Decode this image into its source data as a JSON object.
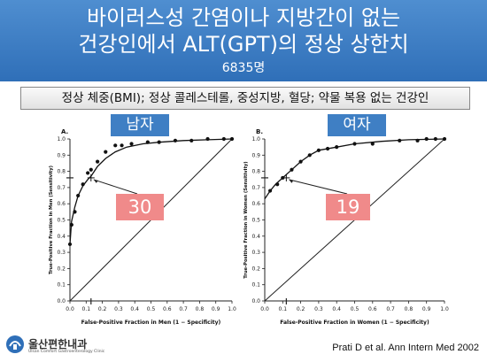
{
  "title_line1": "바이러스성 간염이나 지방간이 없는",
  "title_line2": "건강인에서 ALT(GPT)의 정상 상한치",
  "subtitle_count": "6835명",
  "criteria": "정상 체중(BMI); 정상 콜레스테롤, 중성지방, 혈당; 약물 복용 없는 건강인",
  "citation": "Prati D et al. Ann Intern Med 2002",
  "logo": {
    "main": "울산편한내과",
    "sub": "Ulsan Comfort Gastroenterology Clinic"
  },
  "colors": {
    "header": "#3a7cc4",
    "tag": "#3f7fc4",
    "callout": "#f08a8a"
  },
  "chart_data": [
    {
      "type": "scatter",
      "panel_label": "A.",
      "sex_tag": "남자",
      "callout": "30",
      "xlabel": "False-Positive Fraction in Men (1 − Specificity)",
      "ylabel": "True-Positive Fraction in Men (Sensitivity)",
      "xlim": [
        0,
        1
      ],
      "ylim": [
        0,
        1
      ],
      "ticks": [
        "0.0",
        "0.1",
        "0.2",
        "0.3",
        "0.4",
        "0.5",
        "0.6",
        "0.7",
        "0.8",
        "0.9",
        "1.0"
      ],
      "cutoff": {
        "x": 0.13,
        "y": 0.76
      },
      "x": [
        0.0,
        0.01,
        0.03,
        0.05,
        0.08,
        0.11,
        0.13,
        0.17,
        0.22,
        0.28,
        0.32,
        0.38,
        0.48,
        0.55,
        0.65,
        0.75,
        0.85,
        0.95,
        1.0
      ],
      "y": [
        0.35,
        0.47,
        0.55,
        0.65,
        0.72,
        0.79,
        0.81,
        0.86,
        0.92,
        0.96,
        0.96,
        0.97,
        0.98,
        0.98,
        0.99,
        0.99,
        1.0,
        1.0,
        1.0
      ],
      "curve_x": [
        0.0,
        0.01,
        0.03,
        0.05,
        0.08,
        0.11,
        0.13,
        0.17,
        0.22,
        0.28,
        0.35,
        0.45,
        0.55,
        0.7,
        0.85,
        1.0
      ],
      "curve_y": [
        0.35,
        0.49,
        0.58,
        0.65,
        0.71,
        0.75,
        0.77,
        0.83,
        0.88,
        0.92,
        0.95,
        0.97,
        0.98,
        0.99,
        0.995,
        1.0
      ]
    },
    {
      "type": "scatter",
      "panel_label": "B.",
      "sex_tag": "여자",
      "callout": "19",
      "xlabel": "False-Positive Fraction in Women (1 − Specificity)",
      "ylabel": "True-Positive Fraction in Women (Sensitivity)",
      "xlim": [
        0,
        1
      ],
      "ylim": [
        0,
        1
      ],
      "ticks": [
        "0.0",
        "0.1",
        "0.2",
        "0.3",
        "0.4",
        "0.5",
        "0.6",
        "0.7",
        "0.8",
        "0.9",
        "1.0"
      ],
      "cutoff": {
        "x": 0.12,
        "y": 0.76
      },
      "x": [
        0.03,
        0.07,
        0.1,
        0.15,
        0.2,
        0.25,
        0.3,
        0.35,
        0.4,
        0.5,
        0.6,
        0.75,
        0.85,
        0.9,
        0.95,
        1.0
      ],
      "y": [
        0.68,
        0.72,
        0.76,
        0.81,
        0.86,
        0.9,
        0.93,
        0.94,
        0.95,
        0.97,
        0.97,
        0.99,
        0.99,
        1.0,
        1.0,
        1.0
      ],
      "curve_x": [
        0.0,
        0.03,
        0.06,
        0.1,
        0.15,
        0.2,
        0.25,
        0.3,
        0.4,
        0.5,
        0.65,
        0.8,
        1.0
      ],
      "curve_y": [
        0.63,
        0.68,
        0.72,
        0.76,
        0.81,
        0.86,
        0.9,
        0.93,
        0.95,
        0.97,
        0.985,
        0.995,
        1.0
      ]
    }
  ]
}
